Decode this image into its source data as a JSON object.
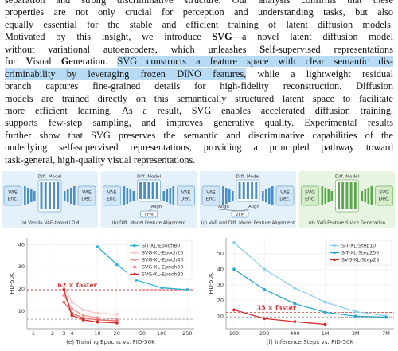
{
  "text": {
    "lines": [
      [
        {
          "text": "separation and strong discriminative structure. Our analysis confirms that these"
        }
      ],
      [
        {
          "text": "properties are not only crucial for perception and understanding tasks, but also"
        }
      ],
      [
        {
          "text": "equally essential for the stable and efficient training of latent diffusion models."
        }
      ],
      [
        {
          "text": "Motivated by this insight, we introduce "
        },
        {
          "text": "SVG",
          "bold": true
        },
        {
          "text": "—a novel latent diffusion model"
        }
      ],
      [
        {
          "text": "without variational autoencoders, which unleashes "
        },
        {
          "text": "S",
          "bold": true
        },
        {
          "text": "elf-supervised representations"
        }
      ],
      [
        {
          "text": "for "
        },
        {
          "text": "V",
          "bold": true
        },
        {
          "text": "isual "
        },
        {
          "text": "G",
          "bold": true
        },
        {
          "text": "eneration. "
        },
        {
          "text": "SVG constructs a feature space with clear semantic dis-",
          "highlight": true
        }
      ],
      [
        {
          "text": "criminability by leveraging frozen DINO features,",
          "highlight": true
        },
        {
          "text": " while a lightweight residual"
        }
      ],
      [
        {
          "text": "branch captures fine-grained details for high-fidelity reconstruction. Diffusion"
        }
      ],
      [
        {
          "text": "models are trained directly on this semantically structured latent space to facilitate"
        }
      ],
      [
        {
          "text": "more efficient learning. As a result, SVG enables accelerated diffusion training,"
        }
      ],
      [
        {
          "text": "supports few-step sampling, and improves generative quality. Experimental results"
        }
      ],
      [
        {
          "text": "further show that SVG preserves the semantic and discriminative capabilities of the"
        }
      ],
      [
        {
          "text": "underlying self-supervised representations, providing a principled pathway toward"
        }
      ],
      [
        {
          "text": "task-general, high-quality visual representations."
        }
      ]
    ]
  },
  "figure": {
    "panels": [
      {
        "caption": "(a) Vanilla VAE-based LDM",
        "diff_label": "Diff. Model",
        "encoder": [
          "VAE",
          "Enc."
        ],
        "decoder": [
          "VAE",
          "Dec."
        ]
      },
      {
        "caption": "(b) Diff. Model Feature Alignment",
        "diff_label": "Diff. Model",
        "encoder": [
          "VAE",
          "Enc."
        ],
        "decoder": [
          "VAE",
          "Dec."
        ],
        "aligns": [
          "Align"
        ],
        "vfm": "VFM"
      },
      {
        "caption": "(c) VAE and Diff. Model Feature Alignment",
        "diff_label": "Diff. Model",
        "encoder": [
          "VAE",
          "Enc."
        ],
        "decoder": [
          "VAE",
          "Dec."
        ],
        "aligns": [
          "Align",
          "Align"
        ],
        "vfm": "VFM"
      },
      {
        "caption": "(d) SVG Feature Space Generation",
        "diff_label": "Diff. Model",
        "encoder": [
          "SVG",
          "Enc."
        ],
        "decoder": [
          "SVG",
          "Dec."
        ]
      }
    ]
  },
  "chart_data": [
    {
      "type": "line",
      "xlabel": "(e) Training Epochs vs. FID-50K",
      "ylabel": "FID-50K",
      "xscale": "log",
      "xlim": [
        0.8,
        320
      ],
      "xticks": [
        1,
        2,
        3,
        4,
        10,
        20,
        50,
        100,
        250
      ],
      "ylim": [
        2,
        43
      ],
      "yticks": [
        10,
        20,
        30,
        40
      ],
      "grid": true,
      "legend": "upper right",
      "reference_lines": [
        {
          "value": 19.6,
          "color": "#d62b2b"
        },
        {
          "value": 6.3,
          "color": "#999999"
        }
      ],
      "annotation": {
        "text": "62 × faster",
        "color": "#d62b2b"
      },
      "series": [
        {
          "name": "SiT-XL-Epoch80",
          "color": "#2bb5d6",
          "x": [
            10,
            20,
            40,
            100,
            250
          ],
          "values": [
            39,
            31,
            24,
            20.5,
            19.6
          ]
        },
        {
          "name": "SVG-XL-Epoch20",
          "color": "#f7c4c4",
          "x": [
            3,
            4,
            6,
            10,
            20
          ],
          "values": [
            21,
            14,
            10.5,
            9,
            8.5
          ]
        },
        {
          "name": "SVG-XL-Epoch40",
          "color": "#f29b9b",
          "x": [
            3,
            4,
            6,
            10,
            20
          ],
          "values": [
            17,
            11,
            8,
            7,
            6.5
          ]
        },
        {
          "name": "SVG-XL-Epoch60",
          "color": "#e86b6b",
          "x": [
            3,
            4,
            6,
            10,
            20
          ],
          "values": [
            14,
            9,
            6.8,
            6,
            5.6
          ]
        },
        {
          "name": "SVG-XL-Epoch80",
          "color": "#d62b2b",
          "x": [
            3,
            4,
            6,
            10,
            20
          ],
          "values": [
            19.6,
            8,
            6,
            5,
            4.6
          ]
        }
      ]
    },
    {
      "type": "line",
      "xlabel": "(f) Inference Steps vs. FID-50K",
      "ylabel": "FID-50K",
      "categories": [
        "100",
        "200",
        "400",
        "1M",
        "3M",
        "7M"
      ],
      "ylim": [
        2,
        60
      ],
      "yticks": [
        10,
        20,
        30,
        40,
        50
      ],
      "grid": true,
      "legend": "upper right",
      "reference_lines": [
        {
          "value": 12.5,
          "color": "#d62b2b"
        },
        {
          "value": 9.3,
          "color": "#999999"
        }
      ],
      "annotation": {
        "text": "35 × faster",
        "color": "#d62b2b"
      },
      "series": [
        {
          "name": "SiT-XL-Step10",
          "color": "#8fd0ea",
          "values": [
            57,
            40,
            28,
            19,
            13,
            10
          ]
        },
        {
          "name": "SiT-XL-Step250",
          "color": "#2aa7c9",
          "values": [
            40,
            27,
            18,
            12.5,
            10,
            9.3
          ]
        },
        {
          "name": "SVG-XL-Step25",
          "color": "#d62b2b",
          "values": [
            14,
            8.5,
            6.5,
            4.8,
            null,
            null
          ]
        }
      ]
    }
  ]
}
